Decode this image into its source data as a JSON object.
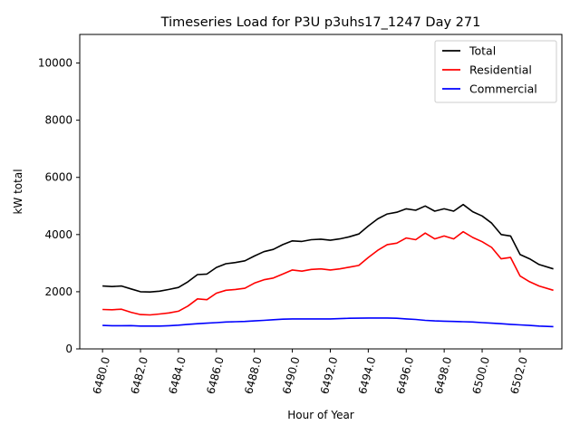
{
  "chart_data": {
    "type": "line",
    "title": "Timeseries Load for P3U p3uhs17_1247  Day 271",
    "xlabel": "Hour of Year",
    "ylabel": "kW total",
    "xlim": [
      6478.8,
      6504.2
    ],
    "ylim": [
      0,
      11000
    ],
    "xticks": [
      6480,
      6482,
      6484,
      6486,
      6488,
      6490,
      6492,
      6494,
      6496,
      6498,
      6500,
      6502
    ],
    "xtick_labels": [
      "6480.0",
      "6482.0",
      "6484.0",
      "6486.0",
      "6488.0",
      "6490.0",
      "6492.0",
      "6494.0",
      "6496.0",
      "6498.0",
      "6500.0",
      "6502.0"
    ],
    "yticks": [
      0,
      2000,
      4000,
      6000,
      8000,
      10000
    ],
    "ytick_labels": [
      "0",
      "2000",
      "4000",
      "6000",
      "8000",
      "10000"
    ],
    "legend_position": "top-right",
    "x": [
      6480,
      6480.5,
      6481,
      6481.5,
      6482,
      6482.5,
      6483,
      6483.5,
      6484,
      6484.5,
      6485,
      6485.5,
      6486,
      6486.5,
      6487,
      6487.5,
      6488,
      6488.5,
      6489,
      6489.5,
      6490,
      6490.5,
      6491,
      6491.5,
      6492,
      6492.5,
      6493,
      6493.5,
      6494,
      6494.5,
      6495,
      6495.5,
      6496,
      6496.5,
      6497,
      6497.5,
      6498,
      6498.5,
      6499,
      6499.5,
      6500,
      6500.5,
      6501,
      6501.5,
      6502,
      6502.5,
      6503,
      6503.75
    ],
    "series": [
      {
        "name": "Total",
        "color": "#000000",
        "values": [
          2200,
          2180,
          2200,
          2100,
          2000,
          1990,
          2020,
          2080,
          2150,
          2350,
          2600,
          2620,
          2850,
          2980,
          3020,
          3080,
          3250,
          3400,
          3480,
          3650,
          3780,
          3760,
          3820,
          3840,
          3800,
          3850,
          3920,
          4020,
          4300,
          4550,
          4720,
          4780,
          4900,
          4850,
          5000,
          4820,
          4900,
          4820,
          5050,
          4800,
          4650,
          4400,
          4000,
          3950,
          3300,
          3150,
          2950,
          2800
        ]
      },
      {
        "name": "Residential",
        "color": "#ff0000",
        "values": [
          1380,
          1370,
          1390,
          1280,
          1200,
          1190,
          1220,
          1260,
          1320,
          1500,
          1750,
          1720,
          1950,
          2050,
          2080,
          2120,
          2300,
          2420,
          2480,
          2620,
          2760,
          2720,
          2780,
          2800,
          2760,
          2800,
          2860,
          2920,
          3200,
          3450,
          3650,
          3700,
          3880,
          3820,
          4050,
          3850,
          3950,
          3850,
          4100,
          3900,
          3750,
          3550,
          3150,
          3200,
          2550,
          2350,
          2200,
          2050
        ]
      },
      {
        "name": "Commercial",
        "color": "#0000ff",
        "values": [
          820,
          810,
          810,
          815,
          800,
          800,
          800,
          810,
          830,
          860,
          880,
          900,
          920,
          940,
          950,
          960,
          980,
          1000,
          1020,
          1040,
          1050,
          1050,
          1050,
          1050,
          1050,
          1060,
          1070,
          1075,
          1080,
          1080,
          1080,
          1070,
          1050,
          1030,
          1000,
          980,
          970,
          960,
          950,
          940,
          920,
          900,
          880,
          860,
          840,
          820,
          800,
          780
        ]
      }
    ]
  }
}
